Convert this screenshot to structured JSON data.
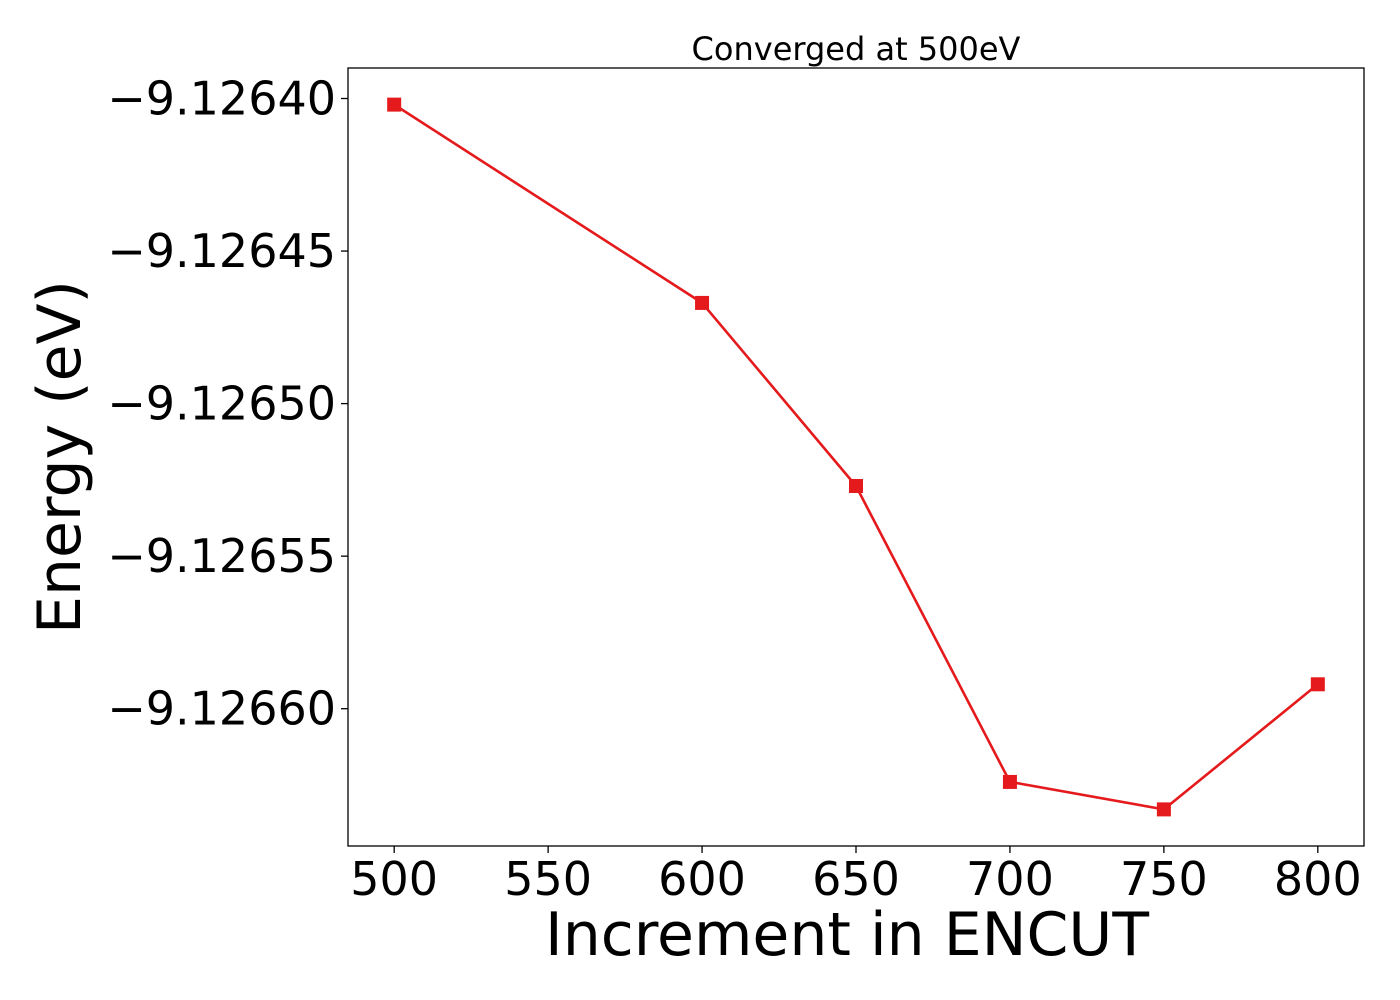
{
  "chart_data": {
    "type": "line",
    "title": "Converged at 500eV",
    "xlabel": "Increment in ENCUT",
    "ylabel": "Energy (eV)",
    "x": [
      500,
      600,
      650,
      700,
      750,
      800
    ],
    "series": [
      {
        "values": [
          -9.126402,
          -9.126467,
          -9.126527,
          -9.126624,
          -9.126633,
          -9.126592
        ],
        "color": "#e41a1c",
        "marker": "square"
      }
    ],
    "xlim": [
      485,
      815
    ],
    "ylim": [
      -9.126645,
      -9.12639
    ],
    "x_ticks": [
      500,
      550,
      600,
      650,
      700,
      750,
      800
    ],
    "x_tick_labels": [
      "500",
      "550",
      "600",
      "650",
      "700",
      "750",
      "800"
    ],
    "y_ticks": [
      -9.1264,
      -9.12645,
      -9.1265,
      -9.12655,
      -9.1266
    ],
    "y_tick_labels": [
      "−9.12640",
      "−9.12645",
      "−9.12650",
      "−9.12655",
      "−9.12660"
    ],
    "grid": false,
    "legend": "none"
  }
}
